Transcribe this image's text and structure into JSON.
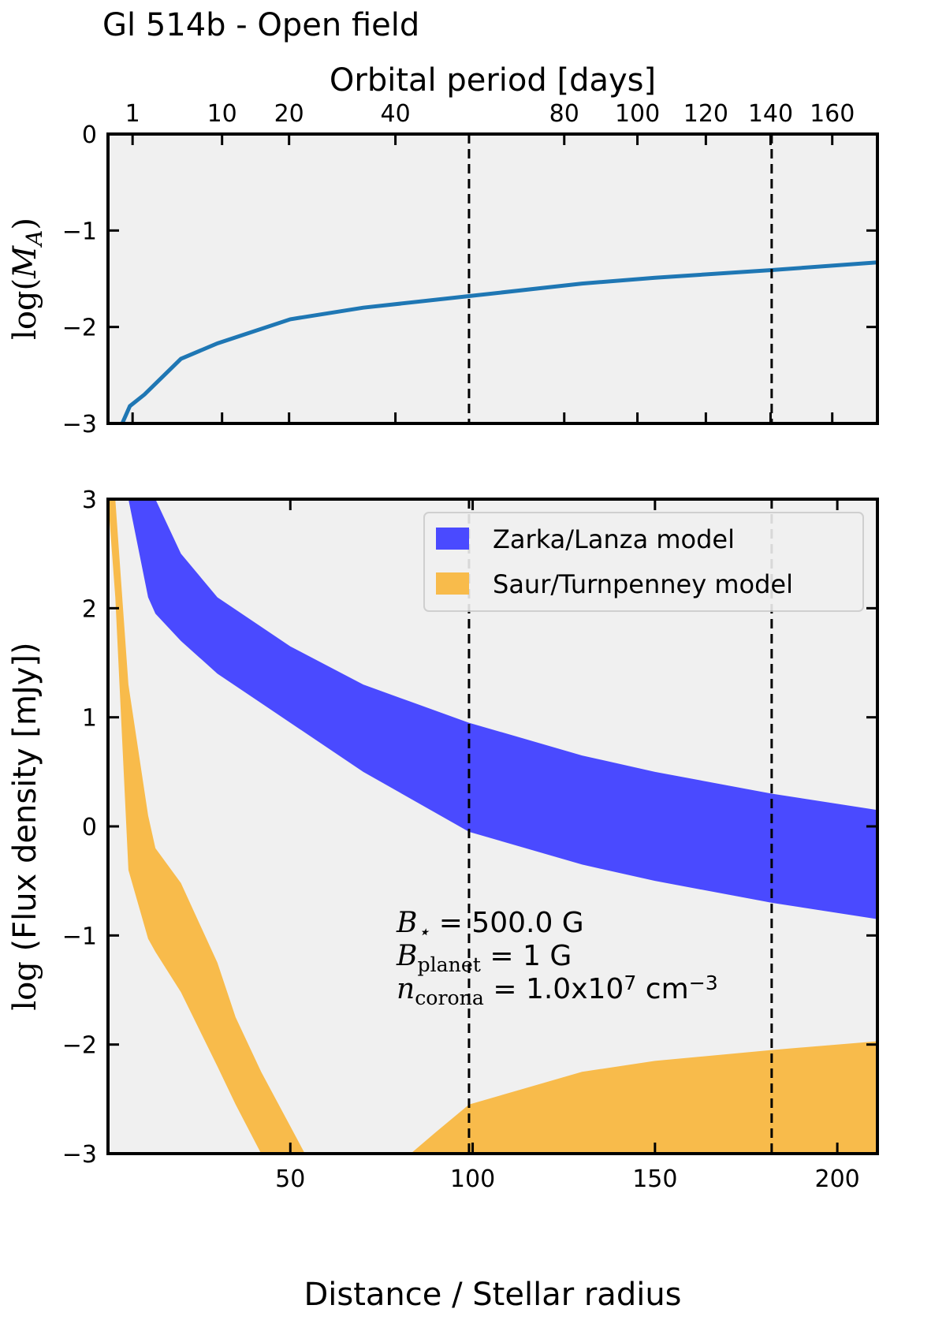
{
  "chart_data": [
    {
      "type": "line",
      "title": "Gl 514b - Open field",
      "x2label": "Orbital period [days]",
      "x2scale": "kepler",
      "x2lim": [
        0,
        175.2
      ],
      "x2ticks": [
        1,
        10,
        20,
        40,
        80,
        100,
        120,
        140,
        160
      ],
      "xlim": [
        0,
        211
      ],
      "ylim": [
        -3,
        0
      ],
      "yticks": [
        0,
        {
          "value": -1,
          "label": "−1"
        },
        {
          "value": -2,
          "label": "−2"
        },
        {
          "value": -3,
          "label": "−3"
        }
      ],
      "ylabel": [
        {
          "text": "log(",
          "kind": "math"
        },
        {
          "text": "M",
          "kind": "var"
        },
        {
          "text": "A",
          "kind": "sub-var"
        },
        {
          "text": ")",
          "kind": "math"
        }
      ],
      "vlines": [
        99,
        182
      ],
      "series": [
        {
          "color": "#1f77b4",
          "x": [
            3.9,
            6,
            10,
            20,
            30,
            50,
            70,
            99,
            130,
            150,
            182,
            211
          ],
          "values": [
            -3,
            -2.82,
            -2.7,
            -2.33,
            -2.17,
            -1.92,
            -1.8,
            -1.68,
            -1.55,
            -1.49,
            -1.41,
            -1.33
          ]
        }
      ]
    },
    {
      "type": "band",
      "xlabel": "Distance / Stellar radius",
      "xlim": [
        0,
        211
      ],
      "xticks": [
        50,
        100,
        150,
        200
      ],
      "ylim": [
        -3,
        3
      ],
      "yticks": [
        3,
        2,
        1,
        0,
        {
          "value": -1,
          "label": "−1"
        },
        {
          "value": -2,
          "label": "−2"
        },
        {
          "value": -3,
          "label": "−3"
        }
      ],
      "ylabel": [
        {
          "text": "log",
          "kind": "math"
        },
        {
          "text": " (Flux density [mJy])",
          "kind": "plain"
        }
      ],
      "vlines": [
        99,
        182
      ],
      "legend": "upper right",
      "series": [
        {
          "name": "Zarka/Lanza model",
          "color": "#4a4aff",
          "x": [
            5.6,
            11,
            13,
            20,
            30,
            50,
            70,
            99,
            130,
            150,
            182,
            211
          ],
          "upper": [
            3,
            3,
            3,
            2.5,
            2.1,
            1.65,
            1.3,
            0.95,
            0.65,
            0.5,
            0.3,
            0.15
          ],
          "lower": [
            3,
            2.1,
            1.95,
            1.7,
            1.4,
            0.95,
            0.5,
            -0.05,
            -0.35,
            -0.5,
            -0.7,
            -0.85
          ]
        },
        {
          "name": "Saur/Turnpenney model",
          "color": "#f8bb4b",
          "x": [
            0,
            2,
            5.6,
            11,
            13,
            20,
            30,
            35,
            42,
            54,
            null,
            83,
            90,
            99,
            130,
            150,
            182,
            211
          ],
          "upper": [
            3,
            3,
            1.3,
            0.1,
            -0.2,
            -0.52,
            -1.25,
            -1.75,
            -2.25,
            -3,
            null,
            -3,
            -2.8,
            -2.55,
            -2.25,
            -2.15,
            -2.05,
            -1.97
          ],
          "lower": [
            3,
            2.1,
            -0.4,
            -1.03,
            -1.15,
            -1.52,
            -2.2,
            -2.55,
            -3,
            -3,
            null,
            -3,
            -3,
            -3,
            -3,
            -3,
            -3,
            -3
          ]
        }
      ],
      "annotations": [
        [
          {
            "text": "B",
            "kind": "var"
          },
          {
            "text": "⋆",
            "kind": "sub-var"
          },
          {
            "text": "     = 500.0 G",
            "kind": "plain"
          }
        ],
        [
          {
            "text": "B",
            "kind": "var"
          },
          {
            "text": "planet",
            "kind": "sub"
          },
          {
            "text": " = 1 G",
            "kind": "plain"
          }
        ],
        [
          {
            "text": "n",
            "kind": "var"
          },
          {
            "text": "corona",
            "kind": "sub"
          },
          {
            "text": " = 1.0x10",
            "kind": "plain"
          },
          {
            "text": "7",
            "kind": "sup"
          },
          {
            "text": " cm",
            "kind": "plain"
          },
          {
            "text": "−3",
            "kind": "sup"
          }
        ]
      ]
    }
  ]
}
